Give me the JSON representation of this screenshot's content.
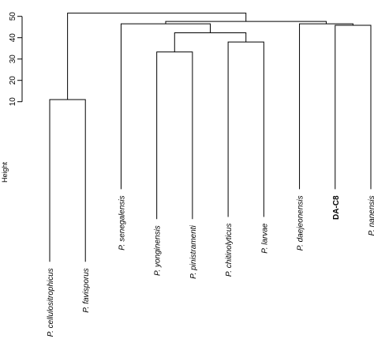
{
  "chart_data": {
    "type": "dendrogram",
    "ylabel": "Height",
    "yticks": [
      10,
      20,
      30,
      40,
      50
    ],
    "leaves": [
      {
        "label": "P. cellulositrophicus",
        "bottom": -65,
        "bold": false
      },
      {
        "label": "P. favisporus",
        "bottom": -65,
        "bold": false
      },
      {
        "label": "P. senegalensis",
        "bottom": -31,
        "bold": false
      },
      {
        "label": "P. yonginensis",
        "bottom": -45,
        "bold": false
      },
      {
        "label": "P. pinistramenti",
        "bottom": -45,
        "bold": false
      },
      {
        "label": "P. chitinolyticus",
        "bottom": -44,
        "bold": false
      },
      {
        "label": "P. larvae",
        "bottom": -44,
        "bold": false
      },
      {
        "label": "P. daejeonensis",
        "bottom": -31,
        "bold": false
      },
      {
        "label": "DA-C8",
        "bottom": -31,
        "bold": true
      },
      {
        "label": "P. nanensis",
        "bottom": -31,
        "bold": false
      }
    ],
    "merges": [
      {
        "left": 0,
        "right": 1,
        "height": 11
      },
      {
        "left": 3,
        "right": 4,
        "height": 33.3
      },
      {
        "left": 5,
        "right": 6,
        "height": 38
      },
      {
        "left": 11,
        "right": 12,
        "height": 42.3
      },
      {
        "left": 8,
        "right": 9,
        "height": 45.8
      },
      {
        "left": 7,
        "right": 14,
        "height": 46.5
      },
      {
        "left": 2,
        "right": 13,
        "height": 46.5
      },
      {
        "left": 16,
        "right": 15,
        "height": 47.6
      },
      {
        "left": 10,
        "right": 17,
        "height": 51.5
      }
    ]
  }
}
